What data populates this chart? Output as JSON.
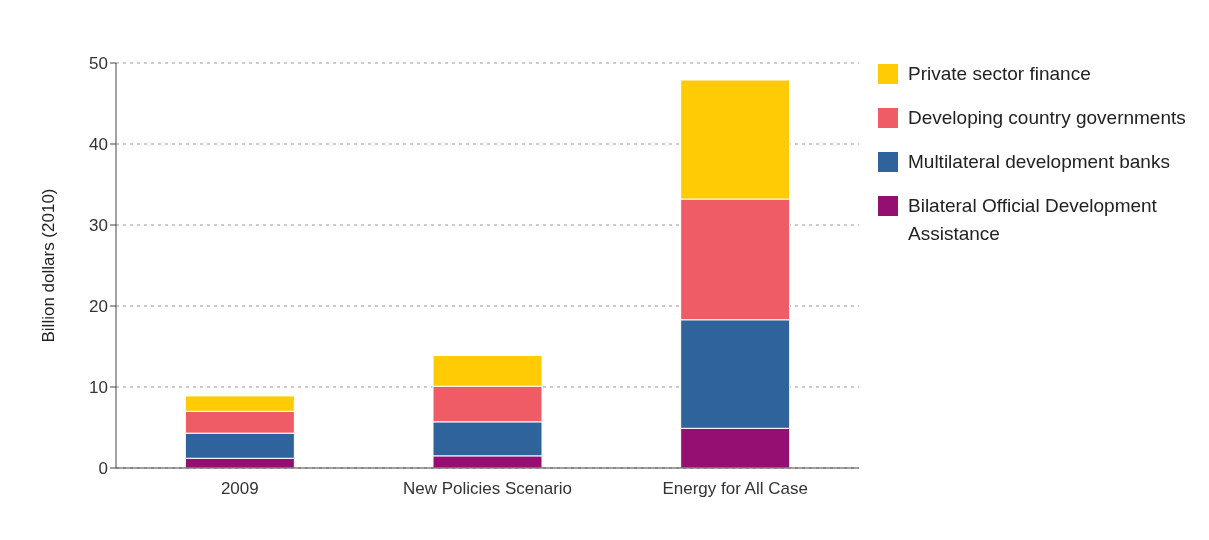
{
  "chart_data": {
    "type": "bar",
    "stacked": true,
    "ylabel": "Billion dollars (2010)",
    "categories": [
      "2009",
      "New Policies Scenario",
      "Energy for All Case"
    ],
    "series": [
      {
        "name": "Bilateral Official Development Assistance",
        "color": "#950e72",
        "values": [
          1.2,
          1.5,
          4.9
        ]
      },
      {
        "name": "Multilateral development banks",
        "color": "#2e639b",
        "values": [
          3.1,
          4.2,
          13.4
        ]
      },
      {
        "name": "Developing country governments",
        "color": "#f05c66",
        "values": [
          2.7,
          4.4,
          14.9
        ]
      },
      {
        "name": "Private sector finance",
        "color": "#fecb04",
        "values": [
          1.9,
          3.8,
          14.7
        ]
      }
    ],
    "ylim": [
      0,
      50
    ],
    "yticks": [
      0,
      10,
      20,
      30,
      40,
      50
    ],
    "grid": "y",
    "legend": "right"
  }
}
